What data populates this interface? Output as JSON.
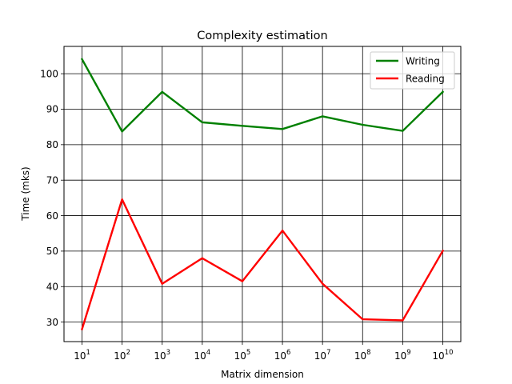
{
  "chart_data": {
    "type": "line",
    "title": "Complexity estimation",
    "xlabel": "Matrix dimension",
    "ylabel": "Time (mks)",
    "x_scale": "log",
    "x": [
      10,
      100,
      1000,
      10000,
      100000,
      1000000,
      10000000,
      100000000,
      1000000000,
      10000000000
    ],
    "x_tick_labels": [
      {
        "base": "10",
        "exp": "1"
      },
      {
        "base": "10",
        "exp": "2"
      },
      {
        "base": "10",
        "exp": "3"
      },
      {
        "base": "10",
        "exp": "4"
      },
      {
        "base": "10",
        "exp": "5"
      },
      {
        "base": "10",
        "exp": "6"
      },
      {
        "base": "10",
        "exp": "7"
      },
      {
        "base": "10",
        "exp": "8"
      },
      {
        "base": "10",
        "exp": "9"
      },
      {
        "base": "10",
        "exp": "10"
      }
    ],
    "y_ticks": [
      30,
      40,
      50,
      60,
      70,
      80,
      90,
      100
    ],
    "ylim": [
      24.5,
      107.7
    ],
    "grid": true,
    "legend_position": "top-right",
    "series": [
      {
        "name": "Writing",
        "color": "#008000",
        "values": [
          104.1,
          83.7,
          94.9,
          86.3,
          85.3,
          84.4,
          88.0,
          85.6,
          83.9,
          94.9
        ]
      },
      {
        "name": "Reading",
        "color": "#ff0000",
        "values": [
          28.0,
          64.6,
          40.8,
          48.0,
          41.5,
          55.8,
          40.8,
          30.8,
          30.5,
          50.1
        ]
      }
    ]
  }
}
